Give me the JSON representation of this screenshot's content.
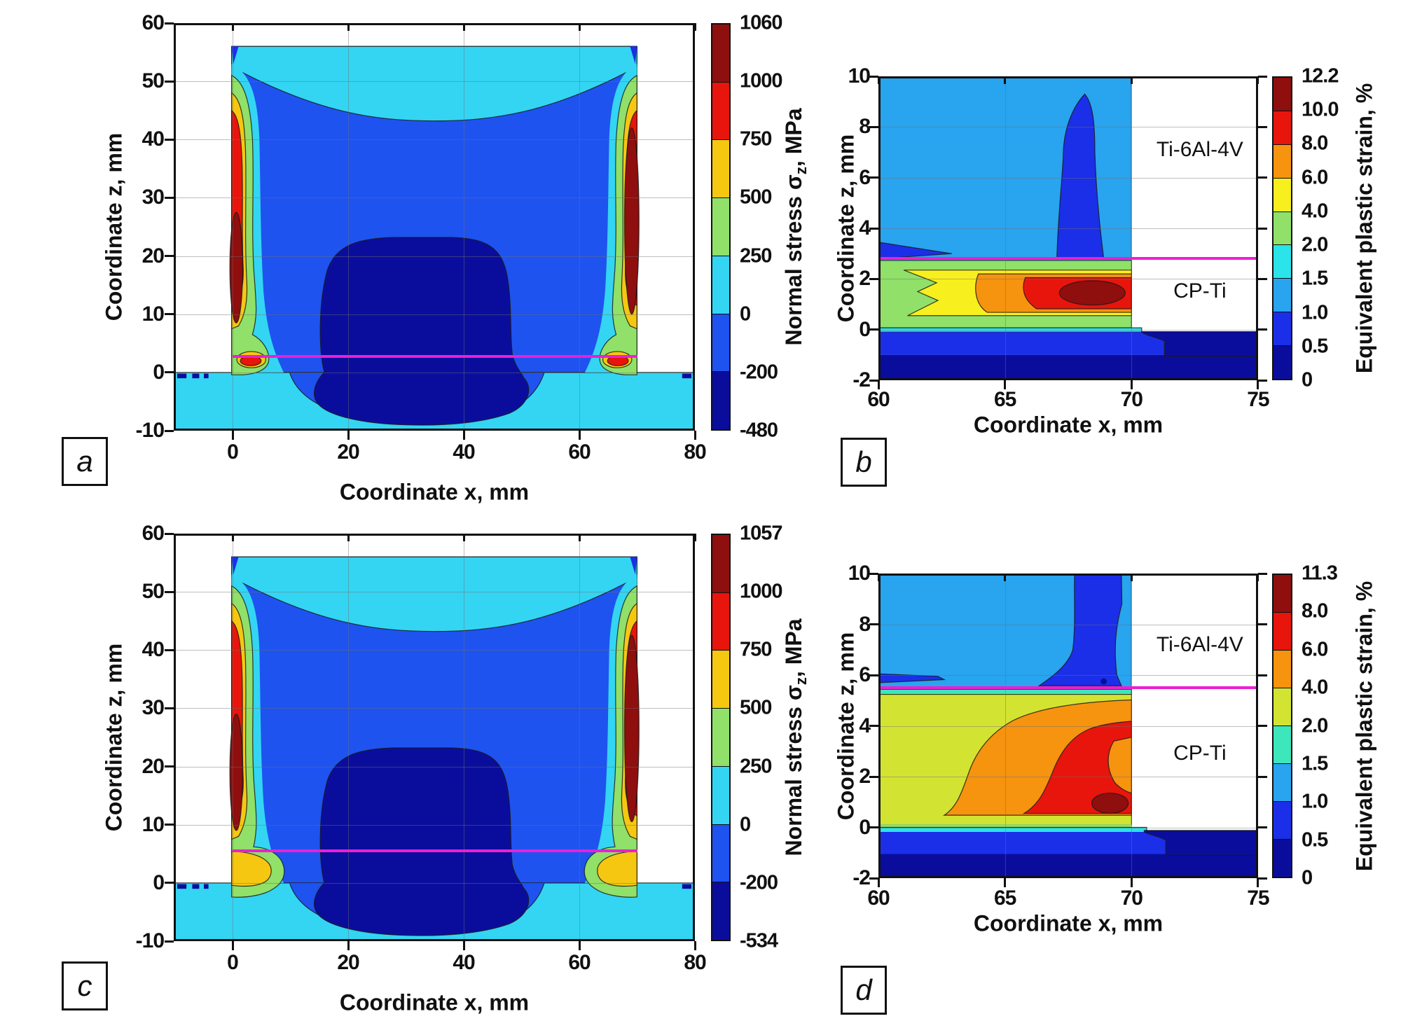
{
  "figure": {
    "background": "#ffffff"
  },
  "palette": {
    "navy": "#0a0d9c",
    "blue": "#1b2fe8",
    "stressBlue": "#1e53f0",
    "dodger": "#29a4ef",
    "cyan": "#33d5f2",
    "strainCyan": "#2ae4ea",
    "turquoise": "#3ee6bb",
    "green": "#90e069",
    "chartreuse": "#d3e331",
    "yellow": "#f6c711",
    "strainYellow": "#f7ef1e",
    "orange": "#f6930f",
    "red": "#e8150c",
    "darkred": "#8f0e0e",
    "magenta": "#ec1fd3"
  },
  "text": {
    "xlabel": "Coordinate x, mm",
    "ylabel": "Coordinate z, mm",
    "stress_title_prefix": "Normal stress σ",
    "stress_title_sub": "z",
    "stress_title_suffix": ", MPa",
    "strain_title": "Equivalent plastic strain, %"
  },
  "panels": [
    {
      "id": "a",
      "letter": "a",
      "type": "stress",
      "xticks": [
        {
          "v": 0,
          "label": "0"
        },
        {
          "v": 20,
          "label": "20"
        },
        {
          "v": 40,
          "label": "40"
        },
        {
          "v": 60,
          "label": "60"
        },
        {
          "v": 80,
          "label": "80"
        }
      ],
      "zticks": [
        {
          "v": 60,
          "label": "60"
        },
        {
          "v": 50,
          "label": "50"
        },
        {
          "v": 40,
          "label": "40"
        },
        {
          "v": 30,
          "label": "30"
        },
        {
          "v": 20,
          "label": "20"
        },
        {
          "v": 10,
          "label": "10"
        },
        {
          "v": 0,
          "label": "0"
        },
        {
          "v": -10,
          "label": "-10"
        }
      ],
      "xgrid": [
        0,
        20,
        40,
        60
      ],
      "zgrid": [
        50,
        40,
        30,
        20,
        10,
        0
      ],
      "interface_line": {
        "z": 2.8,
        "x1": 0,
        "x2": 70
      },
      "colorbar": {
        "segments": [
          "darkred",
          "red",
          "yellow",
          "green",
          "cyan",
          "stressBlue",
          "navy"
        ],
        "labels": [
          "1060",
          "1000",
          "750",
          "500",
          "250",
          "0",
          "-200",
          "-480"
        ],
        "title": "stress"
      },
      "annotations": []
    },
    {
      "id": "b",
      "letter": "b",
      "type": "strain",
      "xticks": [
        {
          "v": 60,
          "label": "60"
        },
        {
          "v": 65,
          "label": "65"
        },
        {
          "v": 70,
          "label": "70"
        },
        {
          "v": 75,
          "label": "75"
        }
      ],
      "zticks": [
        {
          "v": 10,
          "label": "10"
        },
        {
          "v": 8,
          "label": "8"
        },
        {
          "v": 6,
          "label": "6"
        },
        {
          "v": 4,
          "label": "4"
        },
        {
          "v": 2,
          "label": "2"
        },
        {
          "v": 0,
          "label": "0"
        },
        {
          "v": -2,
          "label": "-2"
        }
      ],
      "xgrid": [
        65,
        70
      ],
      "zgrid": [
        8,
        6,
        4,
        2,
        0
      ],
      "interface_line": {
        "z": 2.8,
        "x1": 60,
        "x2": 75
      },
      "colorbar": {
        "segments": [
          "darkred",
          "red",
          "orange",
          "strainYellow",
          "green",
          "strainCyan",
          "dodger",
          "blue",
          "navy"
        ],
        "labels": [
          "12.2",
          "10.0",
          "8.0",
          "6.0",
          "4.0",
          "2.0",
          "1.5",
          "1.0",
          "0.5",
          "0"
        ],
        "title": "strain"
      },
      "annotations": [
        {
          "text": "Ti-6Al-4V",
          "x": 72.7,
          "z": 7.1
        },
        {
          "text": "CP-Ti",
          "x": 72.7,
          "z": 1.5
        }
      ]
    },
    {
      "id": "c",
      "letter": "c",
      "type": "stress",
      "xticks": [
        {
          "v": 0,
          "label": "0"
        },
        {
          "v": 20,
          "label": "20"
        },
        {
          "v": 40,
          "label": "40"
        },
        {
          "v": 60,
          "label": "60"
        },
        {
          "v": 80,
          "label": "80"
        }
      ],
      "zticks": [
        {
          "v": 60,
          "label": "60"
        },
        {
          "v": 50,
          "label": "50"
        },
        {
          "v": 40,
          "label": "40"
        },
        {
          "v": 30,
          "label": "30"
        },
        {
          "v": 20,
          "label": "20"
        },
        {
          "v": 10,
          "label": "10"
        },
        {
          "v": 0,
          "label": "0"
        },
        {
          "v": -10,
          "label": "-10"
        }
      ],
      "xgrid": [
        0,
        20,
        40,
        60
      ],
      "zgrid": [
        50,
        40,
        30,
        20,
        10,
        0
      ],
      "interface_line": {
        "z": 5.5,
        "x1": 0,
        "x2": 70
      },
      "colorbar": {
        "segments": [
          "darkred",
          "red",
          "yellow",
          "green",
          "cyan",
          "stressBlue",
          "navy"
        ],
        "labels": [
          "1057",
          "1000",
          "750",
          "500",
          "250",
          "0",
          "-200",
          "-534"
        ],
        "title": "stress"
      },
      "annotations": []
    },
    {
      "id": "d",
      "letter": "d",
      "type": "strain",
      "xticks": [
        {
          "v": 60,
          "label": "60"
        },
        {
          "v": 65,
          "label": "65"
        },
        {
          "v": 70,
          "label": "70"
        },
        {
          "v": 75,
          "label": "75"
        }
      ],
      "zticks": [
        {
          "v": 10,
          "label": "10"
        },
        {
          "v": 8,
          "label": "8"
        },
        {
          "v": 6,
          "label": "6"
        },
        {
          "v": 4,
          "label": "4"
        },
        {
          "v": 2,
          "label": "2"
        },
        {
          "v": 0,
          "label": "0"
        },
        {
          "v": -2,
          "label": "-2"
        }
      ],
      "xgrid": [
        65,
        70
      ],
      "zgrid": [
        8,
        6,
        4,
        2,
        0
      ],
      "interface_line": {
        "z": 5.5,
        "x1": 60,
        "x2": 75
      },
      "colorbar": {
        "segments": [
          "darkred",
          "red",
          "orange",
          "chartreuse",
          "turquoise",
          "dodger",
          "blue",
          "navy"
        ],
        "labels": [
          "11.3",
          "8.0",
          "6.0",
          "4.0",
          "2.0",
          "1.5",
          "1.0",
          "0.5",
          "0"
        ],
        "title": "strain"
      },
      "annotations": [
        {
          "text": "Ti-6Al-4V",
          "x": 72.7,
          "z": 7.2
        },
        {
          "text": "CP-Ti",
          "x": 72.7,
          "z": 2.9
        }
      ]
    }
  ],
  "chart_data": [
    {
      "id": "a",
      "type": "heatmap",
      "subtype": "filled-contour",
      "title": "Normal stress σz, MPa",
      "xlabel": "Coordinate x, mm",
      "ylabel": "Coordinate z, mm",
      "x_range": [
        -10,
        80
      ],
      "z_range": [
        -10,
        60
      ],
      "levels_MPa": [
        -480,
        -200,
        0,
        250,
        500,
        750,
        1000,
        1060
      ],
      "level_colors": [
        "navy",
        "stressBlue",
        "cyan",
        "green",
        "yellow",
        "red",
        "darkred"
      ],
      "max_value_MPa": 1060,
      "min_value_MPa": -480,
      "interface_line_z_mm": 2.8,
      "regions": "Billet x=0..70, z=0..56 on base plate z=-10..0; compressive core (to -480 MPa) in billet center; tensile stripes up to 1060 MPa along lateral surfaces x≈0 and x≈70; magenta joint line at z=2.8 mm"
    },
    {
      "id": "b",
      "type": "heatmap",
      "subtype": "filled-contour",
      "title": "Equivalent plastic strain, %",
      "xlabel": "Coordinate x, mm",
      "ylabel": "Coordinate z, mm",
      "x_range": [
        60,
        75
      ],
      "z_range": [
        -2,
        10
      ],
      "levels_percent": [
        0,
        0.5,
        1.0,
        1.5,
        2.0,
        4.0,
        6.0,
        8.0,
        10.0,
        12.2
      ],
      "level_colors": [
        "navy",
        "blue",
        "dodger",
        "strainCyan",
        "green",
        "strainYellow",
        "orange",
        "red",
        "darkred"
      ],
      "max_value_percent": 12.2,
      "interface_line_z_mm": 2.8,
      "materials": [
        {
          "name": "Ti-6Al-4V",
          "location": "above joint line"
        },
        {
          "name": "CP-Ti",
          "location": "below joint line"
        }
      ],
      "regions": "Strain localized in CP-Ti layer z=0..2.7 mm, increasing toward billet edge x=70 with maximum 12.2% near x≈68.5, z≈1.2"
    },
    {
      "id": "c",
      "type": "heatmap",
      "subtype": "filled-contour",
      "title": "Normal stress σz, MPa",
      "xlabel": "Coordinate x, mm",
      "ylabel": "Coordinate z, mm",
      "x_range": [
        -10,
        80
      ],
      "z_range": [
        -10,
        60
      ],
      "levels_MPa": [
        -534,
        -200,
        0,
        250,
        500,
        750,
        1000,
        1057
      ],
      "level_colors": [
        "navy",
        "stressBlue",
        "cyan",
        "green",
        "yellow",
        "red",
        "darkred"
      ],
      "max_value_MPa": 1057,
      "min_value_MPa": -534,
      "interface_line_z_mm": 5.5,
      "regions": "Same billet geometry as panel a; magenta joint line at z=5.5 mm; yellow 500-750 MPa zones at billet base corners below the joint"
    },
    {
      "id": "d",
      "type": "heatmap",
      "subtype": "filled-contour",
      "title": "Equivalent plastic strain, %",
      "xlabel": "Coordinate x, mm",
      "ylabel": "Coordinate z, mm",
      "x_range": [
        60,
        75
      ],
      "z_range": [
        -2,
        10
      ],
      "levels_percent": [
        0,
        0.5,
        1.0,
        1.5,
        2.0,
        4.0,
        6.0,
        8.0,
        11.3
      ],
      "level_colors": [
        "navy",
        "blue",
        "dodger",
        "turquoise",
        "chartreuse",
        "orange",
        "red",
        "darkred"
      ],
      "max_value_percent": 11.3,
      "interface_line_z_mm": 5.5,
      "materials": [
        {
          "name": "Ti-6Al-4V",
          "location": "above joint line"
        },
        {
          "name": "CP-Ti",
          "location": "below joint line"
        }
      ],
      "regions": "Strain spread through CP-Ti layer z=0..5.4 mm; 6-8% red zone near edge x=65.5..70 with maximum 11.3% at x≈69, z≈0.7"
    }
  ]
}
